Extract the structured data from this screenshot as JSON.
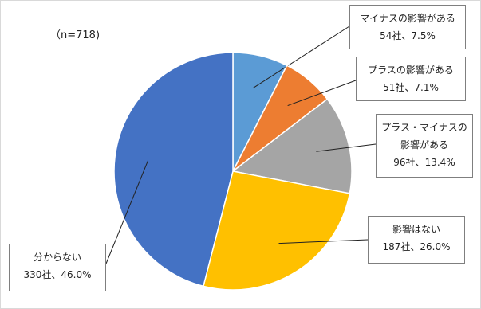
{
  "chart_data": {
    "type": "pie",
    "annotation": "（n=718)",
    "categories": [
      "マイナスの影響がある",
      "プラスの影響がある",
      "プラス・マイナスの影響がある",
      "影響はない",
      "分からない"
    ],
    "values": [
      7.5,
      7.1,
      13.4,
      26.0,
      46.0
    ],
    "value_labels": [
      "54社、7.5%",
      "51社、7.1%",
      "96社、13.4%",
      "187社、26.0%",
      "330社、46.0%"
    ],
    "colors": [
      "#5b9bd5",
      "#ed7d31",
      "#a5a5a5",
      "#ffc000",
      "#4472c4"
    ]
  }
}
